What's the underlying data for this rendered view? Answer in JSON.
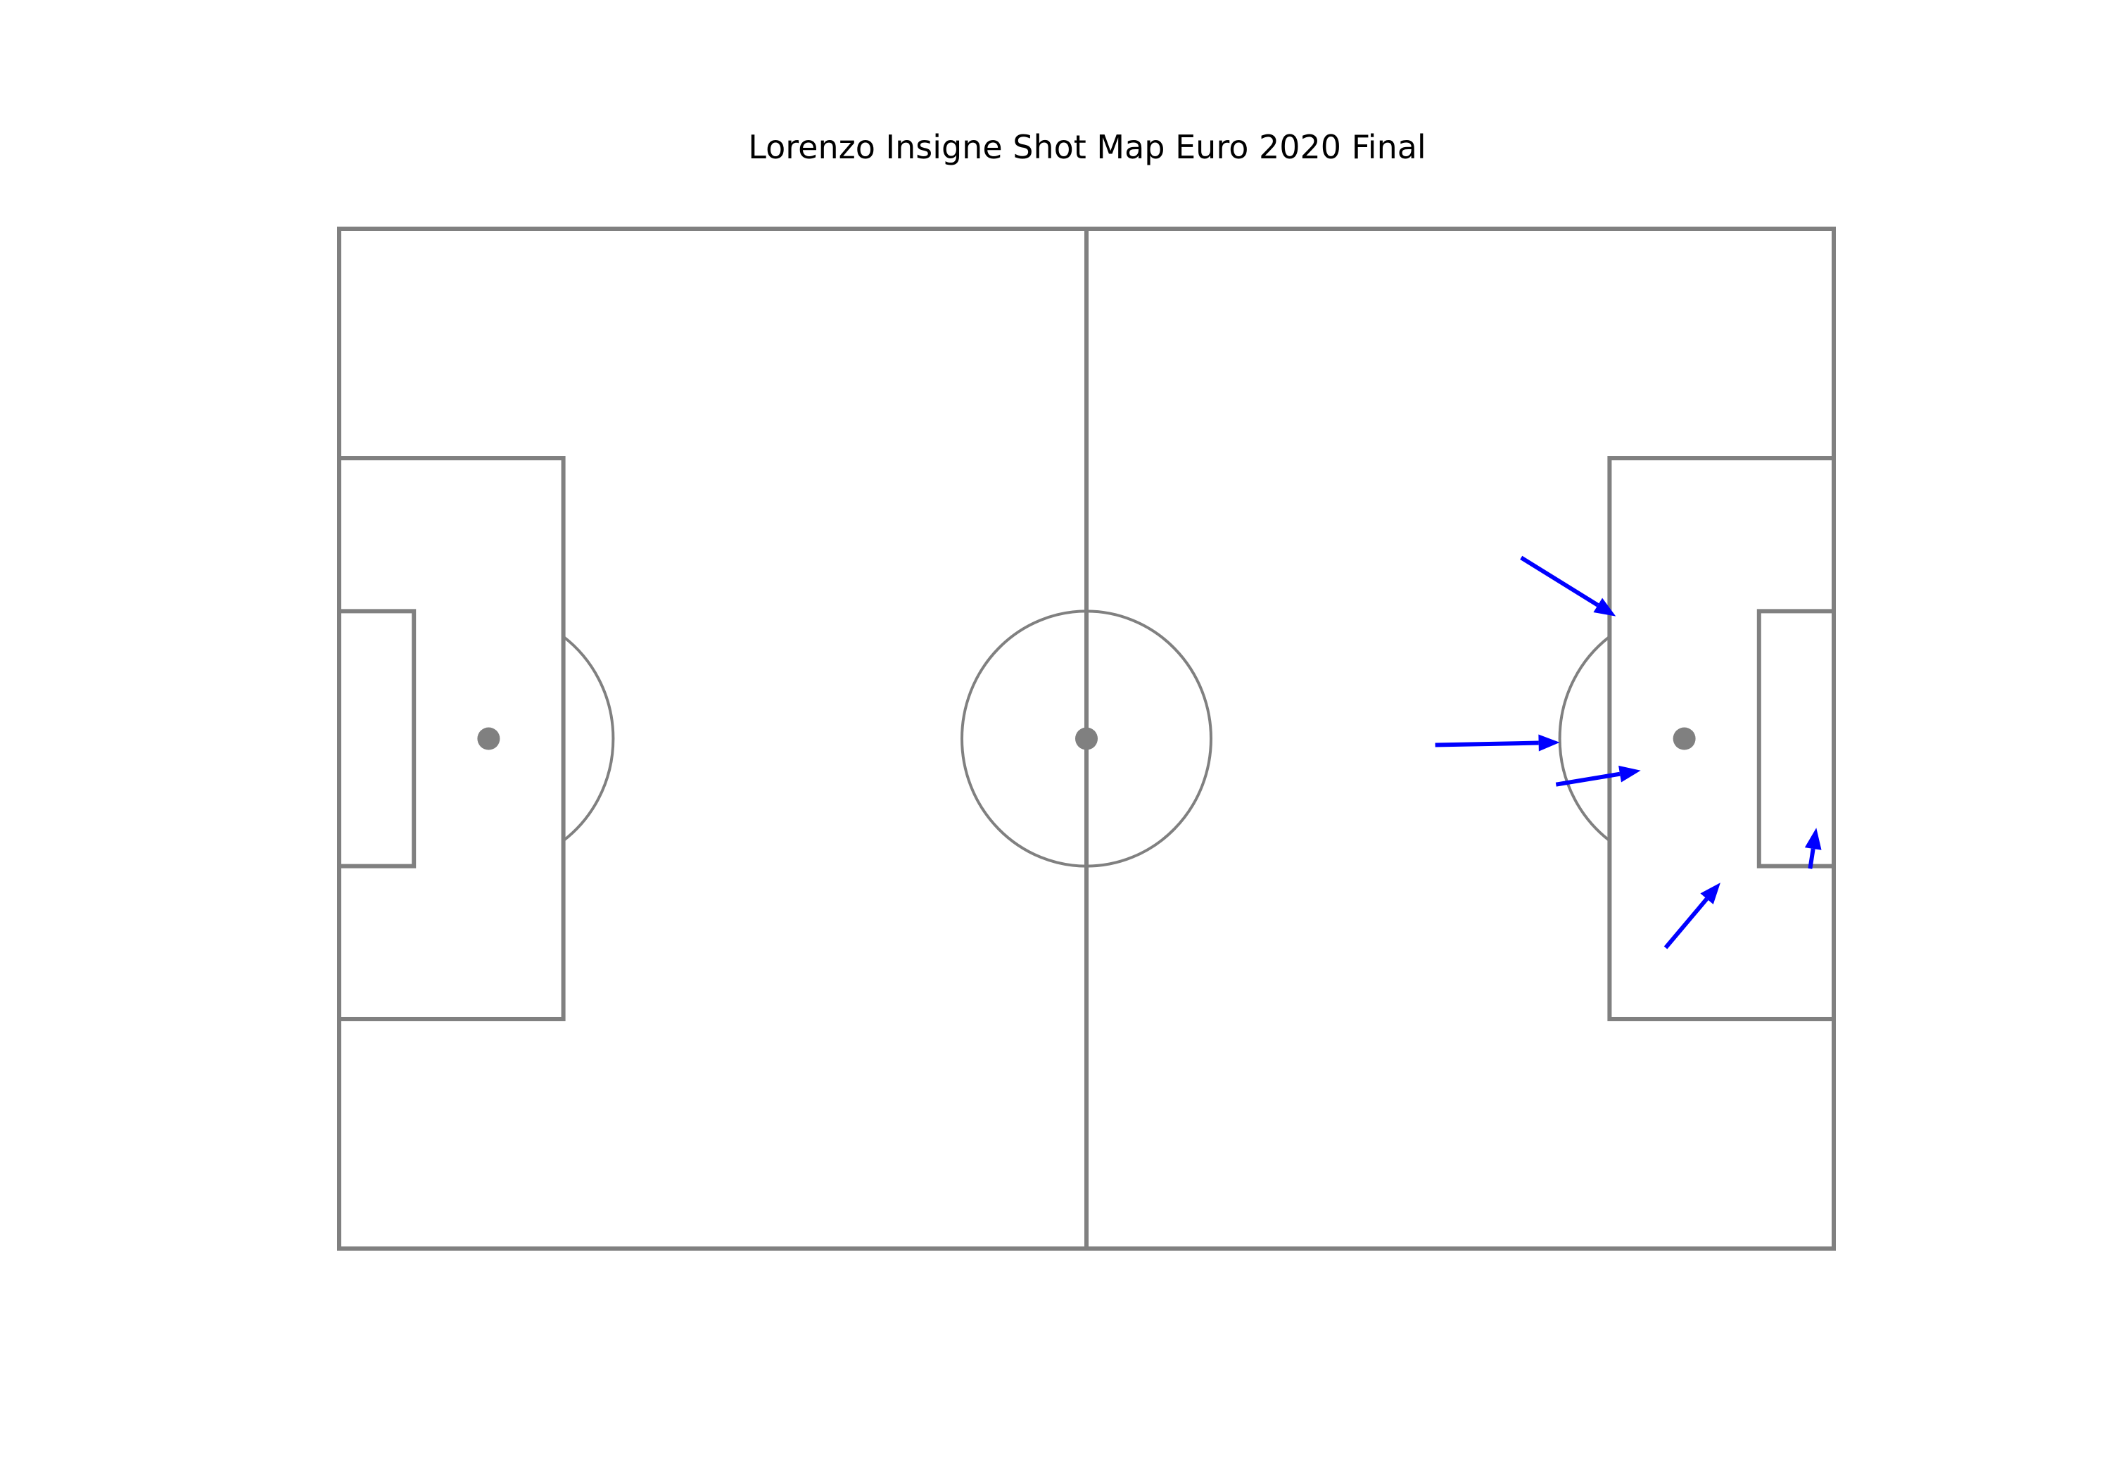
{
  "chart_data": {
    "type": "scatter",
    "subtype": "shot-map-arrows",
    "title": "Lorenzo Insigne Shot Map Euro 2020 Final",
    "pitch": {
      "length": 120,
      "width": 80,
      "line_color": "#808080",
      "background": "#ffffff"
    },
    "shot_color": "#0000ff",
    "shots": [
      {
        "x": 88.0,
        "y": 40.5,
        "end_x": 98.0,
        "end_y": 40.3
      },
      {
        "x": 97.7,
        "y": 43.6,
        "end_x": 104.5,
        "end_y": 42.5
      },
      {
        "x": 94.9,
        "y": 25.8,
        "end_x": 102.5,
        "end_y": 30.4
      },
      {
        "x": 106.5,
        "y": 56.4,
        "end_x": 110.9,
        "end_y": 51.3
      },
      {
        "x": 118.1,
        "y": 50.2,
        "end_x": 118.6,
        "end_y": 47.0
      }
    ]
  }
}
